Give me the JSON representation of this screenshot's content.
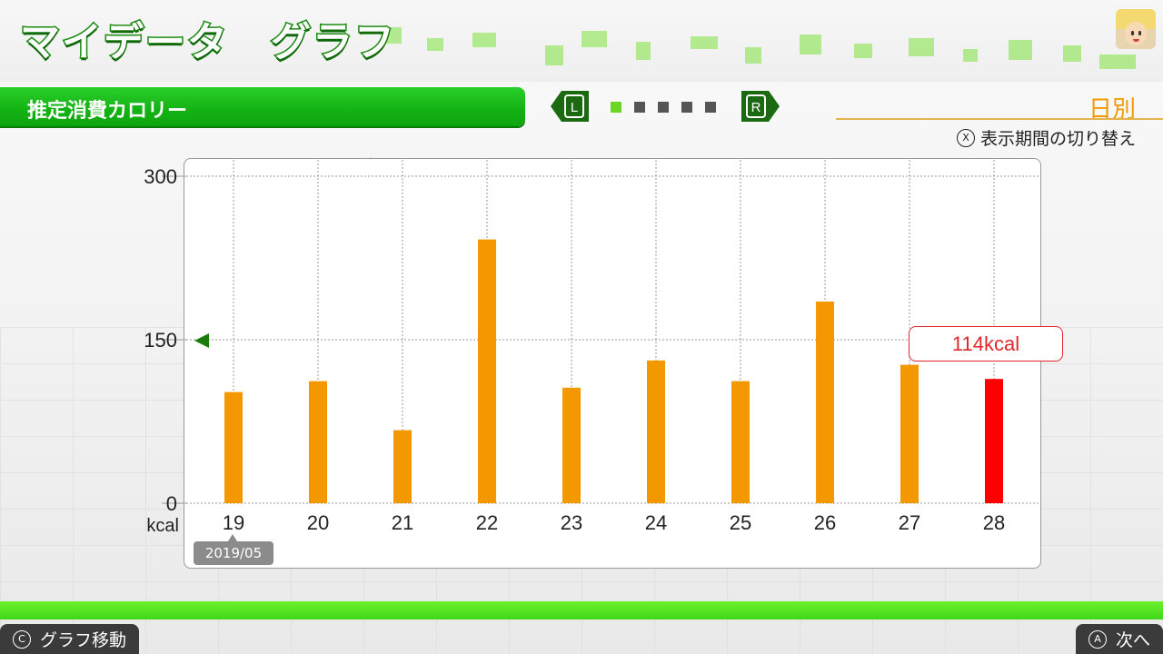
{
  "header": {
    "title": "マイデータ　グラフ"
  },
  "section": {
    "title": "推定消費カロリー",
    "l_button": "L",
    "r_button": "R",
    "page_count": 5,
    "active_page": 1
  },
  "period": {
    "label": "日別",
    "hint_icon": "Ⓧ",
    "hint": "表示期間の切り替え"
  },
  "chart_data": {
    "type": "bar",
    "categories": [
      "19",
      "20",
      "21",
      "22",
      "23",
      "24",
      "25",
      "26",
      "27",
      "28"
    ],
    "values": [
      102,
      112,
      67,
      242,
      106,
      131,
      112,
      185,
      127,
      114
    ],
    "highlight_index": 9,
    "ylim": [
      0,
      300
    ],
    "yticks": [
      "0",
      "150",
      "300"
    ],
    "ylabel": "kcal",
    "average": 150,
    "colors": {
      "bar": "#f39800",
      "highlight": "#ff0000",
      "average_marker": "#1a7a0a"
    }
  },
  "selection": {
    "callout": "114kcal",
    "month": "2019/05"
  },
  "footer": {
    "left_icon": "Ⓒ",
    "left_label": "グラフ移動",
    "right_icon": "Ⓐ",
    "right_label": "次へ"
  }
}
